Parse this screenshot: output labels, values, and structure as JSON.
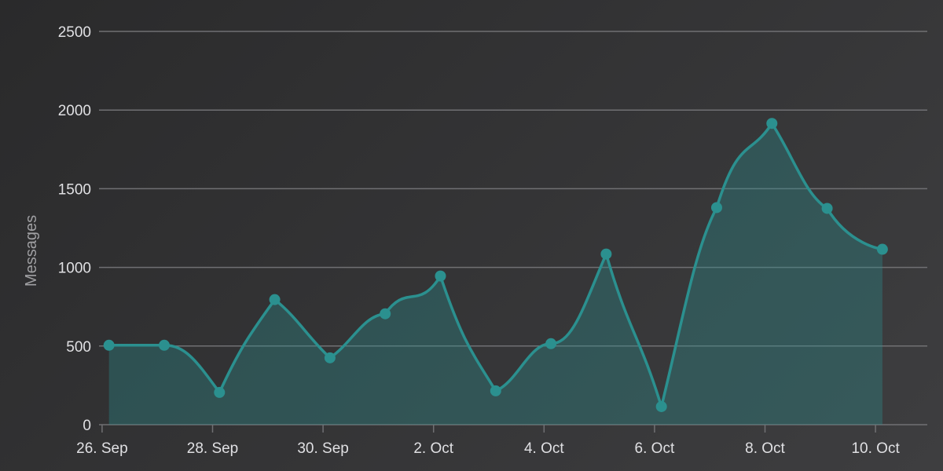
{
  "chart_data": {
    "type": "area",
    "title": "",
    "ylabel": "Messages",
    "xlabel": "",
    "ylim": [
      0,
      2500
    ],
    "yticks": [
      0,
      500,
      1000,
      1500,
      2000,
      2500
    ],
    "x_tick_labels": [
      {
        "date": "2023-09-26",
        "label": "26. Sep"
      },
      {
        "date": "2023-09-28",
        "label": "28. Sep"
      },
      {
        "date": "2023-09-30",
        "label": "30. Sep"
      },
      {
        "date": "2023-10-02",
        "label": "2. Oct"
      },
      {
        "date": "2023-10-04",
        "label": "4. Oct"
      },
      {
        "date": "2023-10-06",
        "label": "6. Oct"
      },
      {
        "date": "2023-10-08",
        "label": "8. Oct"
      },
      {
        "date": "2023-10-10",
        "label": "10. Oct"
      }
    ],
    "grid": true,
    "series": [
      {
        "color": "#2b908f",
        "x": [
          "2023-09-26 03:00",
          "2023-09-27 03:00",
          "2023-09-28 03:00",
          "2023-09-29 03:00",
          "2023-09-30 03:00",
          "2023-10-01 03:00",
          "2023-10-02 03:00",
          "2023-10-03 03:00",
          "2023-10-04 03:00",
          "2023-10-05 03:00",
          "2023-10-06 03:00",
          "2023-10-07 03:00",
          "2023-10-08 03:00",
          "2023-10-09 03:00",
          "2023-10-10 03:00"
        ],
        "values": [
          505,
          505,
          205,
          795,
          425,
          705,
          945,
          215,
          515,
          1085,
          115,
          1380,
          1915,
          1375,
          1115
        ]
      }
    ]
  },
  "colors": {
    "line": "#2b908f",
    "grid": "#707073",
    "text": "#e0e0e3",
    "axis_title": "#a0a0a3"
  }
}
